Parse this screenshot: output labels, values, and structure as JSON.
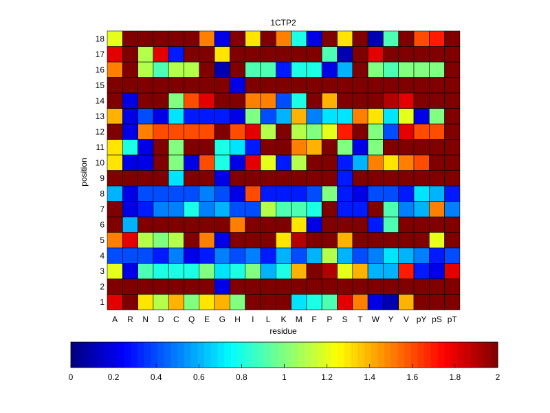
{
  "chart_data": {
    "type": "heatmap",
    "title": "1CTP2",
    "xlabel": "residue",
    "ylabel": "position",
    "x_categories": [
      "A",
      "R",
      "N",
      "D",
      "C",
      "Q",
      "E",
      "G",
      "H",
      "I",
      "L",
      "K",
      "M",
      "F",
      "P",
      "S",
      "T",
      "W",
      "Y",
      "V",
      "pY",
      "pS",
      "pT"
    ],
    "y_categories": [
      "1",
      "2",
      "3",
      "4",
      "5",
      "6",
      "7",
      "8",
      "9",
      "10",
      "11",
      "12",
      "13",
      "14",
      "15",
      "16",
      "17",
      "18"
    ],
    "colormap": "jet",
    "clim": [
      0,
      2
    ],
    "colorbar_ticks": [
      "0",
      "0.2",
      "0.4",
      "0.6",
      "0.8",
      "1",
      "1.2",
      "1.4",
      "1.6",
      "1.8",
      "2"
    ],
    "values": [
      [
        1.8,
        2.0,
        1.3,
        1.1,
        1.4,
        1.0,
        1.3,
        1.4,
        1.0,
        2.0,
        2.0,
        2.0,
        0.7,
        0.8,
        0.9,
        1.8,
        1.5,
        0.2,
        0.1,
        1.4,
        2.0,
        2.0,
        2.0
      ],
      [
        2.0,
        2.0,
        2.0,
        2.0,
        2.0,
        2.0,
        2.0,
        0.2,
        2.0,
        2.0,
        2.0,
        2.0,
        2.0,
        2.0,
        2.0,
        2.0,
        2.0,
        2.0,
        2.0,
        2.0,
        2.0,
        2.0,
        2.0
      ],
      [
        1.2,
        0.2,
        0.9,
        0.8,
        0.8,
        0.8,
        1.0,
        0.7,
        0.8,
        1.0,
        0.6,
        0.8,
        1.4,
        2.0,
        1.9,
        1.2,
        1.4,
        0.6,
        0.6,
        1.7,
        0.3,
        0.2,
        1.8
      ],
      [
        0.4,
        0.4,
        0.4,
        0.3,
        0.5,
        0.2,
        0.3,
        0.5,
        0.4,
        0.5,
        0.3,
        0.6,
        0.4,
        0.6,
        1.1,
        0.6,
        0.4,
        0.5,
        0.7,
        0.6,
        0.5,
        0.3,
        0.4
      ],
      [
        1.5,
        1.8,
        1.1,
        1.0,
        1.1,
        2.0,
        1.5,
        0.2,
        2.0,
        2.0,
        2.0,
        1.3,
        1.9,
        2.0,
        2.0,
        1.4,
        2.0,
        2.0,
        2.0,
        2.0,
        2.0,
        1.2,
        2.0
      ],
      [
        2.0,
        0.6,
        2.0,
        2.0,
        2.0,
        2.0,
        2.0,
        2.0,
        1.5,
        2.0,
        2.0,
        2.0,
        1.3,
        0.2,
        2.0,
        2.0,
        2.0,
        0.3,
        0.9,
        2.0,
        2.0,
        2.0,
        2.0
      ],
      [
        2.0,
        0.2,
        0.3,
        0.5,
        0.5,
        0.8,
        0.5,
        0.6,
        0.4,
        0.4,
        1.1,
        0.9,
        0.9,
        0.8,
        2.0,
        0.3,
        0.3,
        2.0,
        0.9,
        0.5,
        0.6,
        1.5,
        0.5
      ],
      [
        0.6,
        0.2,
        0.4,
        0.4,
        0.4,
        0.4,
        0.5,
        0.4,
        0.2,
        1.6,
        0.3,
        0.3,
        0.3,
        0.4,
        1.0,
        0.3,
        0.2,
        0.4,
        0.4,
        0.3,
        0.7,
        0.6,
        0.3
      ],
      [
        2.0,
        2.0,
        2.0,
        2.0,
        0.7,
        2.0,
        2.0,
        0.2,
        2.0,
        2.0,
        2.0,
        2.0,
        2.0,
        2.0,
        2.0,
        0.3,
        2.0,
        2.0,
        2.0,
        2.0,
        2.0,
        2.0,
        2.0
      ],
      [
        1.3,
        0.2,
        0.2,
        2.0,
        1.0,
        0.2,
        1.6,
        0.8,
        0.2,
        1.8,
        1.2,
        0.3,
        1.1,
        2.0,
        2.0,
        0.3,
        0.6,
        1.5,
        1.3,
        1.5,
        1.6,
        2.0,
        2.0
      ],
      [
        1.3,
        0.8,
        0.2,
        2.0,
        1.0,
        2.0,
        2.0,
        0.8,
        0.7,
        0.3,
        2.0,
        2.0,
        1.5,
        1.4,
        2.0,
        1.0,
        0.2,
        1.0,
        2.0,
        2.0,
        2.0,
        2.0,
        2.0
      ],
      [
        2.0,
        0.2,
        1.5,
        1.6,
        1.6,
        1.6,
        1.6,
        2.0,
        1.6,
        1.8,
        1.1,
        2.0,
        1.1,
        1.0,
        1.2,
        1.7,
        2.0,
        1.0,
        0.4,
        1.8,
        1.6,
        1.6,
        2.0
      ],
      [
        1.4,
        0.2,
        0.4,
        0.2,
        0.7,
        0.3,
        0.3,
        0.3,
        0.2,
        1.0,
        0.4,
        0.6,
        1.4,
        0.5,
        0.7,
        0.7,
        1.5,
        1.3,
        0.7,
        1.2,
        0.2,
        1.0,
        2.0
      ],
      [
        2.0,
        0.2,
        2.0,
        2.0,
        1.0,
        1.6,
        1.8,
        2.0,
        2.0,
        1.5,
        1.5,
        0.4,
        0.8,
        2.0,
        1.4,
        2.0,
        2.0,
        2.0,
        1.9,
        1.8,
        2.0,
        2.0,
        2.0
      ],
      [
        2.0,
        2.0,
        2.0,
        2.0,
        2.0,
        2.0,
        2.0,
        2.0,
        0.2,
        2.0,
        2.0,
        2.0,
        2.0,
        2.0,
        2.0,
        2.0,
        2.0,
        2.0,
        2.0,
        2.0,
        2.0,
        2.0,
        2.0
      ],
      [
        1.5,
        2.0,
        1.1,
        0.9,
        1.1,
        1.1,
        2.0,
        0.1,
        2.0,
        0.9,
        0.9,
        0.3,
        0.8,
        0.8,
        0.2,
        0.6,
        2.0,
        1.0,
        0.9,
        1.0,
        1.0,
        1.0,
        2.0
      ],
      [
        1.8,
        2.0,
        1.1,
        1.8,
        0.3,
        2.0,
        2.0,
        1.3,
        2.0,
        2.0,
        2.0,
        2.0,
        2.0,
        2.0,
        0.9,
        0.1,
        2.0,
        1.8,
        2.0,
        2.0,
        2.0,
        2.0,
        2.0
      ],
      [
        1.2,
        2.0,
        2.0,
        2.0,
        2.0,
        2.0,
        1.5,
        0.2,
        2.0,
        1.3,
        2.0,
        1.5,
        0.8,
        0.2,
        2.0,
        1.3,
        2.0,
        0.1,
        0.9,
        2.0,
        1.6,
        1.7,
        2.0
      ]
    ]
  }
}
